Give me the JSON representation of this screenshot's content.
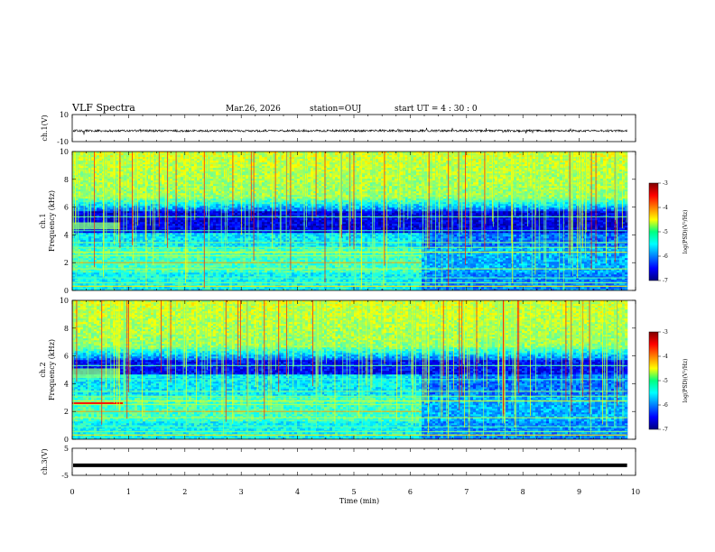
{
  "header": {
    "title": "VLF Spectra",
    "date": "Mar.26, 2026",
    "station": "station=OUJ",
    "start": "start  UT =   4 : 30 : 0"
  },
  "chart_data": [
    {
      "type": "line",
      "panel": "ch1-waveform",
      "ylabel": "ch.1(V)",
      "ylim": [
        -10,
        10
      ],
      "y_ticks": [
        "10",
        "-10"
      ],
      "description_values": {
        "baseline": -2,
        "amplitude": 1
      }
    },
    {
      "type": "heatmap",
      "panel": "ch1-spectrogram",
      "ylabel": "Frequency (kHz)",
      "channel_label": "ch.1",
      "ylim": [
        0,
        10
      ],
      "y_ticks": [
        "0",
        "2",
        "4",
        "6",
        "8",
        "10"
      ],
      "colorbar": {
        "label": "log(PSD)(V²/Hz)",
        "min": -7,
        "max": -3,
        "ticks": [
          "-3",
          "-4",
          "-5",
          "-6",
          "-7"
        ]
      },
      "transition_min": 6.2
    },
    {
      "type": "heatmap",
      "panel": "ch2-spectrogram",
      "ylabel": "Frequency (kHz)",
      "channel_label": "ch.2",
      "ylim": [
        0,
        10
      ],
      "y_ticks": [
        "0",
        "2",
        "4",
        "6",
        "8",
        "10"
      ],
      "colorbar": {
        "label": "log(PSD)(V²/Hz)",
        "min": -7,
        "max": -3,
        "ticks": [
          "-3",
          "-4",
          "-5",
          "-6",
          "-7"
        ]
      },
      "transition_min": 6.2
    },
    {
      "type": "line",
      "panel": "ch3-waveform",
      "ylabel": "ch.3(V)",
      "ylim": [
        -5,
        5
      ],
      "y_ticks": [
        "5",
        "-5"
      ],
      "description_values": {
        "baseline": -1.3
      }
    }
  ],
  "x_axis": {
    "label": "Time (min)",
    "xlim": [
      0,
      10
    ],
    "ticks": [
      "0",
      "1",
      "2",
      "3",
      "4",
      "5",
      "6",
      "7",
      "8",
      "9",
      "10"
    ],
    "data_end": 9.85
  },
  "colors": {
    "jet_low": "#00007f",
    "jet_mid": "#00ff80",
    "jet_high": "#7f0000"
  }
}
